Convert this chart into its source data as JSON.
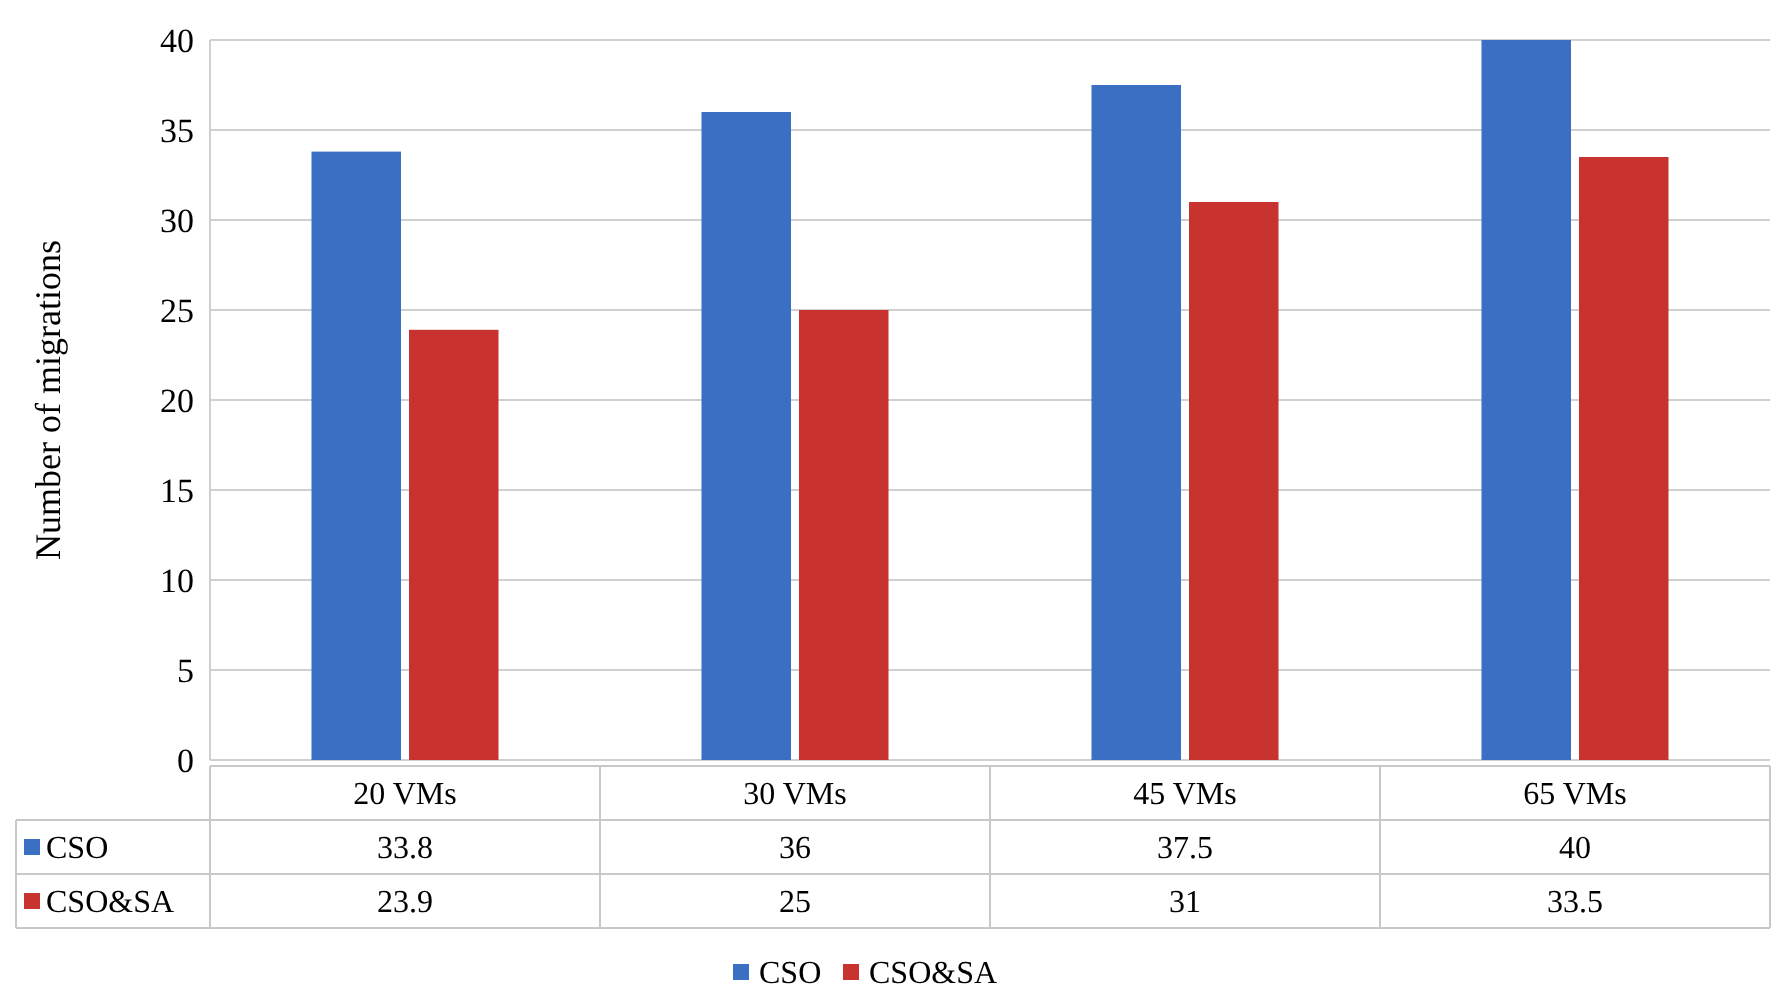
{
  "chart_data": {
    "type": "bar",
    "ylabel": "Number of migrations",
    "categories": [
      "20 VMs",
      "30 VMs",
      "45 VMs",
      "65 VMs"
    ],
    "series": [
      {
        "name": "CSO",
        "color": "#3a6fc4",
        "values": [
          33.8,
          36,
          37.5,
          40
        ]
      },
      {
        "name": "CSO&SA",
        "color": "#c8322f",
        "values": [
          23.9,
          25,
          31,
          33.5
        ]
      }
    ],
    "ylim": [
      0,
      40
    ],
    "yticks": [
      0,
      5,
      10,
      15,
      20,
      25,
      30,
      35,
      40
    ],
    "grid": "y",
    "legend": "bottom",
    "data_labels": true
  }
}
